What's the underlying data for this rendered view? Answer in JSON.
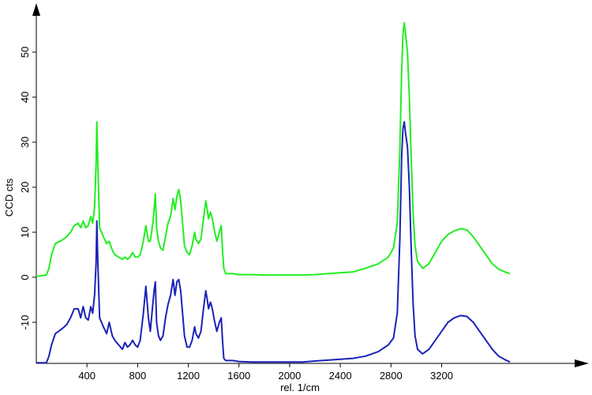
{
  "chart_data": {
    "type": "line",
    "title": "",
    "xlabel": "rel. 1/cm",
    "ylabel": "CCD cts",
    "xlim": [
      0,
      4300
    ],
    "ylim": [
      -20,
      60
    ],
    "x_ticks": [
      400,
      800,
      1200,
      1600,
      2000,
      2400,
      2800,
      3200
    ],
    "y_ticks": [
      -10,
      0,
      10,
      20,
      30,
      40,
      50
    ],
    "grid": false,
    "legend": "none",
    "series": [
      {
        "color": "#22ee22",
        "points": [
          [
            0,
            0.2
          ],
          [
            80,
            0.5
          ],
          [
            100,
            2
          ],
          [
            120,
            5
          ],
          [
            150,
            7.5
          ],
          [
            200,
            8.2
          ],
          [
            240,
            9
          ],
          [
            270,
            10
          ],
          [
            300,
            11.5
          ],
          [
            330,
            12
          ],
          [
            350,
            11
          ],
          [
            370,
            12.5
          ],
          [
            390,
            11
          ],
          [
            410,
            11.5
          ],
          [
            430,
            13.5
          ],
          [
            445,
            12
          ],
          [
            460,
            15.5
          ],
          [
            472,
            25
          ],
          [
            478,
            34.5
          ],
          [
            486,
            25
          ],
          [
            500,
            11
          ],
          [
            530,
            9
          ],
          [
            555,
            7.5
          ],
          [
            575,
            8
          ],
          [
            600,
            6
          ],
          [
            620,
            5
          ],
          [
            650,
            4.5
          ],
          [
            680,
            4
          ],
          [
            700,
            4.5
          ],
          [
            720,
            4
          ],
          [
            740,
            4.5
          ],
          [
            760,
            5.5
          ],
          [
            780,
            4.5
          ],
          [
            800,
            4.5
          ],
          [
            820,
            5
          ],
          [
            845,
            8
          ],
          [
            865,
            11.5
          ],
          [
            885,
            8
          ],
          [
            900,
            8
          ],
          [
            920,
            12
          ],
          [
            930,
            15
          ],
          [
            940,
            18.5
          ],
          [
            950,
            11
          ],
          [
            965,
            8
          ],
          [
            980,
            6.5
          ],
          [
            1000,
            6
          ],
          [
            1020,
            9
          ],
          [
            1040,
            12
          ],
          [
            1060,
            13.5
          ],
          [
            1080,
            17.5
          ],
          [
            1095,
            15
          ],
          [
            1110,
            18
          ],
          [
            1125,
            19.5
          ],
          [
            1140,
            17
          ],
          [
            1155,
            12
          ],
          [
            1170,
            7
          ],
          [
            1190,
            5.5
          ],
          [
            1210,
            5
          ],
          [
            1230,
            7
          ],
          [
            1250,
            10
          ],
          [
            1260,
            8.5
          ],
          [
            1280,
            7.5
          ],
          [
            1300,
            8.5
          ],
          [
            1320,
            13
          ],
          [
            1338,
            17
          ],
          [
            1350,
            15
          ],
          [
            1360,
            13
          ],
          [
            1375,
            14.5
          ],
          [
            1390,
            13
          ],
          [
            1405,
            10.5
          ],
          [
            1425,
            8
          ],
          [
            1445,
            10
          ],
          [
            1460,
            11.5
          ],
          [
            1470,
            6
          ],
          [
            1480,
            2
          ],
          [
            1495,
            0.8
          ],
          [
            1550,
            0.8
          ],
          [
            1600,
            0.6
          ],
          [
            1700,
            0.6
          ],
          [
            1800,
            0.5
          ],
          [
            1900,
            0.5
          ],
          [
            2000,
            0.5
          ],
          [
            2100,
            0.5
          ],
          [
            2200,
            0.6
          ],
          [
            2300,
            0.8
          ],
          [
            2400,
            1
          ],
          [
            2500,
            1.2
          ],
          [
            2600,
            2
          ],
          [
            2700,
            3
          ],
          [
            2780,
            4.5
          ],
          [
            2820,
            6.5
          ],
          [
            2850,
            12
          ],
          [
            2870,
            28
          ],
          [
            2885,
            46
          ],
          [
            2895,
            54
          ],
          [
            2905,
            56.5
          ],
          [
            2915,
            54
          ],
          [
            2930,
            50
          ],
          [
            2945,
            40
          ],
          [
            2960,
            26
          ],
          [
            2975,
            14
          ],
          [
            2990,
            7
          ],
          [
            3010,
            3.5
          ],
          [
            3050,
            2
          ],
          [
            3100,
            3
          ],
          [
            3150,
            5.5
          ],
          [
            3200,
            8
          ],
          [
            3250,
            9.5
          ],
          [
            3300,
            10.3
          ],
          [
            3350,
            10.8
          ],
          [
            3400,
            10.5
          ],
          [
            3450,
            9
          ],
          [
            3500,
            7
          ],
          [
            3550,
            5
          ],
          [
            3600,
            3
          ],
          [
            3650,
            1.8
          ],
          [
            3700,
            1.2
          ],
          [
            3740,
            0.8
          ]
        ]
      },
      {
        "color": "#1c22b8",
        "points": [
          [
            0,
            -19
          ],
          [
            80,
            -19
          ],
          [
            100,
            -17.5
          ],
          [
            120,
            -15
          ],
          [
            150,
            -12.5
          ],
          [
            200,
            -11.5
          ],
          [
            240,
            -10.5
          ],
          [
            270,
            -9
          ],
          [
            300,
            -7
          ],
          [
            330,
            -7
          ],
          [
            350,
            -9
          ],
          [
            370,
            -6.5
          ],
          [
            390,
            -9
          ],
          [
            410,
            -9.5
          ],
          [
            430,
            -6.5
          ],
          [
            445,
            -8
          ],
          [
            460,
            -4
          ],
          [
            472,
            3
          ],
          [
            478,
            12.5
          ],
          [
            486,
            3
          ],
          [
            500,
            -9
          ],
          [
            530,
            -11
          ],
          [
            555,
            -12.5
          ],
          [
            575,
            -10
          ],
          [
            600,
            -13
          ],
          [
            620,
            -14
          ],
          [
            650,
            -15
          ],
          [
            680,
            -16
          ],
          [
            700,
            -14.5
          ],
          [
            720,
            -15.5
          ],
          [
            740,
            -15
          ],
          [
            760,
            -14
          ],
          [
            780,
            -15
          ],
          [
            800,
            -15.5
          ],
          [
            820,
            -14
          ],
          [
            845,
            -8
          ],
          [
            865,
            -2
          ],
          [
            885,
            -9
          ],
          [
            900,
            -12
          ],
          [
            920,
            -6
          ],
          [
            930,
            -3
          ],
          [
            940,
            -1
          ],
          [
            950,
            -10
          ],
          [
            965,
            -13
          ],
          [
            980,
            -14
          ],
          [
            1000,
            -13
          ],
          [
            1020,
            -9
          ],
          [
            1040,
            -6
          ],
          [
            1060,
            -4
          ],
          [
            1080,
            -0.5
          ],
          [
            1095,
            -4
          ],
          [
            1110,
            -1
          ],
          [
            1125,
            -0.5
          ],
          [
            1140,
            -3
          ],
          [
            1155,
            -8
          ],
          [
            1170,
            -13
          ],
          [
            1190,
            -15.5
          ],
          [
            1210,
            -15.5
          ],
          [
            1230,
            -14
          ],
          [
            1250,
            -11
          ],
          [
            1260,
            -12.5
          ],
          [
            1280,
            -13.5
          ],
          [
            1300,
            -12
          ],
          [
            1320,
            -7
          ],
          [
            1338,
            -3
          ],
          [
            1350,
            -5
          ],
          [
            1360,
            -7
          ],
          [
            1375,
            -5.5
          ],
          [
            1390,
            -7
          ],
          [
            1405,
            -9.5
          ],
          [
            1425,
            -12
          ],
          [
            1445,
            -10
          ],
          [
            1460,
            -9
          ],
          [
            1470,
            -14
          ],
          [
            1480,
            -18
          ],
          [
            1495,
            -18.5
          ],
          [
            1550,
            -18.5
          ],
          [
            1600,
            -18.7
          ],
          [
            1700,
            -18.8
          ],
          [
            1800,
            -18.8
          ],
          [
            1900,
            -18.8
          ],
          [
            2000,
            -18.8
          ],
          [
            2100,
            -18.8
          ],
          [
            2200,
            -18.6
          ],
          [
            2300,
            -18.4
          ],
          [
            2400,
            -18.2
          ],
          [
            2500,
            -18
          ],
          [
            2600,
            -17.5
          ],
          [
            2700,
            -16.5
          ],
          [
            2780,
            -15
          ],
          [
            2820,
            -13.5
          ],
          [
            2850,
            -8
          ],
          [
            2870,
            8
          ],
          [
            2885,
            27
          ],
          [
            2895,
            33
          ],
          [
            2905,
            34.5
          ],
          [
            2915,
            32
          ],
          [
            2930,
            29
          ],
          [
            2945,
            20
          ],
          [
            2960,
            6
          ],
          [
            2975,
            -6
          ],
          [
            2990,
            -13
          ],
          [
            3010,
            -16
          ],
          [
            3050,
            -17
          ],
          [
            3100,
            -16
          ],
          [
            3150,
            -14
          ],
          [
            3200,
            -12
          ],
          [
            3250,
            -10
          ],
          [
            3300,
            -9
          ],
          [
            3350,
            -8.5
          ],
          [
            3400,
            -8.7
          ],
          [
            3450,
            -10
          ],
          [
            3500,
            -12
          ],
          [
            3550,
            -14
          ],
          [
            3600,
            -16
          ],
          [
            3650,
            -17.5
          ],
          [
            3700,
            -18.3
          ],
          [
            3740,
            -18.8
          ]
        ]
      }
    ]
  }
}
